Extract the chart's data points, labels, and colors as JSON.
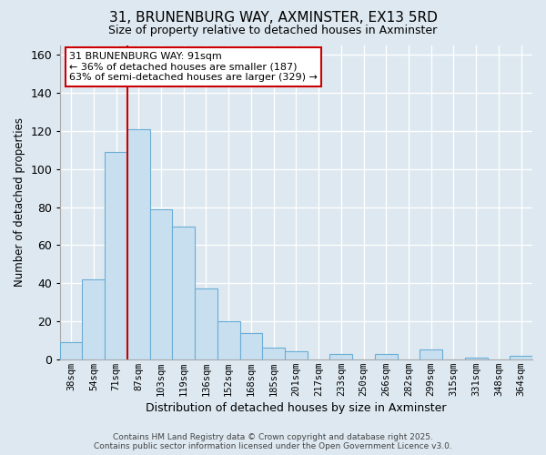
{
  "title1": "31, BRUNENBURG WAY, AXMINSTER, EX13 5RD",
  "title2": "Size of property relative to detached houses in Axminster",
  "xlabel": "Distribution of detached houses by size in Axminster",
  "ylabel": "Number of detached properties",
  "bar_labels": [
    "38sqm",
    "54sqm",
    "71sqm",
    "87sqm",
    "103sqm",
    "119sqm",
    "136sqm",
    "152sqm",
    "168sqm",
    "185sqm",
    "201sqm",
    "217sqm",
    "233sqm",
    "250sqm",
    "266sqm",
    "282sqm",
    "299sqm",
    "315sqm",
    "331sqm",
    "348sqm",
    "364sqm"
  ],
  "bar_values": [
    9,
    42,
    109,
    121,
    79,
    70,
    37,
    20,
    14,
    6,
    4,
    0,
    3,
    0,
    3,
    0,
    5,
    0,
    1,
    0,
    2
  ],
  "bar_color": "#c8dff0",
  "bar_edge_color": "#6aadd5",
  "highlight_bar_index": 3,
  "highlight_line_color": "#cc0000",
  "ylim": [
    0,
    165
  ],
  "yticks": [
    0,
    20,
    40,
    60,
    80,
    100,
    120,
    140,
    160
  ],
  "annotation_title": "31 BRUNENBURG WAY: 91sqm",
  "annotation_line1": "← 36% of detached houses are smaller (187)",
  "annotation_line2": "63% of semi-detached houses are larger (329) →",
  "annotation_box_facecolor": "#ffffff",
  "annotation_box_edgecolor": "#cc0000",
  "footer1": "Contains HM Land Registry data © Crown copyright and database right 2025.",
  "footer2": "Contains public sector information licensed under the Open Government Licence v3.0.",
  "background_color": "#dde8f0",
  "plot_bg_color": "#dde8f0",
  "grid_color": "#ffffff"
}
